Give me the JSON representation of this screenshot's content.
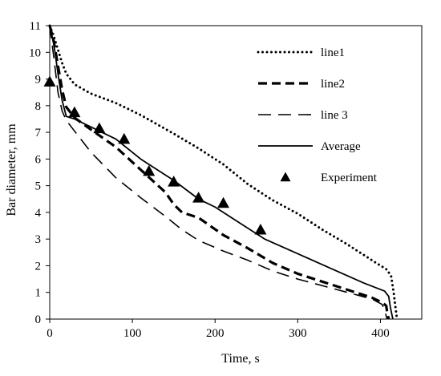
{
  "chart_data": {
    "type": "line",
    "xlabel": "Time, s",
    "ylabel": "Bar diameter, mm",
    "xlim": [
      0,
      450
    ],
    "ylim": [
      0,
      11
    ],
    "xticks": [
      "0",
      "100",
      "200",
      "300",
      "400"
    ],
    "yticks": [
      "0",
      "1",
      "2",
      "3",
      "4",
      "5",
      "6",
      "7",
      "8",
      "9",
      "10",
      "11"
    ],
    "grid": false,
    "legend_position": "top-right",
    "series": [
      {
        "name": "line1",
        "style": "dotted",
        "x": [
          0,
          5,
          10,
          15,
          20,
          30,
          50,
          80,
          110,
          150,
          180,
          210,
          240,
          270,
          300,
          330,
          360,
          390,
          408,
          413,
          416,
          418,
          420
        ],
        "y": [
          11,
          10.6,
          10.1,
          9.6,
          9.2,
          8.8,
          8.45,
          8.1,
          7.65,
          6.95,
          6.4,
          5.8,
          5.05,
          4.45,
          3.95,
          3.35,
          2.8,
          2.2,
          1.85,
          1.6,
          1.0,
          0.5,
          0
        ]
      },
      {
        "name": "line2",
        "style": "dashed-thick",
        "x": [
          0,
          5,
          10,
          15,
          20,
          30,
          50,
          80,
          110,
          140,
          150,
          160,
          180,
          210,
          240,
          270,
          300,
          330,
          360,
          390,
          400,
          405,
          407,
          408,
          410
        ],
        "y": [
          11,
          10.4,
          9.5,
          8.6,
          7.95,
          7.55,
          7.1,
          6.45,
          5.6,
          4.75,
          4.3,
          4.0,
          3.8,
          3.15,
          2.65,
          2.1,
          1.7,
          1.4,
          1.1,
          0.8,
          0.65,
          0.55,
          0.5,
          0.3,
          0
        ]
      },
      {
        "name": "line 3",
        "style": "dashed-thin",
        "x": [
          0,
          5,
          10,
          15,
          20,
          30,
          50,
          80,
          110,
          140,
          160,
          180,
          210,
          240,
          270,
          300,
          330,
          360,
          390,
          402,
          405,
          408
        ],
        "y": [
          11,
          9.8,
          8.5,
          7.8,
          7.45,
          7.05,
          6.25,
          5.3,
          4.55,
          3.85,
          3.35,
          2.95,
          2.55,
          2.2,
          1.8,
          1.5,
          1.25,
          1.0,
          0.75,
          0.55,
          0.35,
          0
        ]
      },
      {
        "name": "Average",
        "style": "solid",
        "x": [
          0,
          5,
          10,
          15,
          20,
          30,
          50,
          80,
          110,
          150,
          180,
          200,
          230,
          260,
          300,
          340,
          380,
          405,
          410,
          412,
          415
        ],
        "y": [
          11,
          10.3,
          9.2,
          8.2,
          7.6,
          7.5,
          7.2,
          6.75,
          6.0,
          5.2,
          4.5,
          4.2,
          3.6,
          3.0,
          2.45,
          1.9,
          1.35,
          1.05,
          0.85,
          0.45,
          0
        ]
      }
    ],
    "experiment": {
      "name": "Experiment",
      "marker": "triangle",
      "x": [
        0,
        30,
        60,
        90,
        120,
        150,
        180,
        210,
        255
      ],
      "y": [
        8.9,
        7.75,
        7.15,
        6.75,
        5.55,
        5.15,
        4.55,
        4.35,
        3.35
      ]
    }
  }
}
